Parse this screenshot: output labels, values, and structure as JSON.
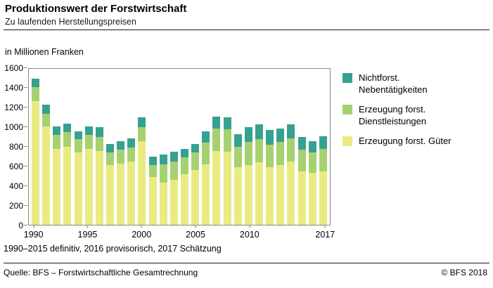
{
  "header": {
    "title": "Produktionswert der Forstwirtschaft",
    "subtitle": "Zu laufenden Herstellungspreisen"
  },
  "chart": {
    "unit_label": "in Millionen Franken"
  },
  "chart_data": {
    "type": "bar",
    "stacked": true,
    "title": "Produktionswert der Forstwirtschaft",
    "subtitle": "Zu laufenden Herstellungspreisen",
    "ylabel": "in Millionen Franken",
    "xlabel": "",
    "ylim": [
      0,
      1600
    ],
    "ytick_step": 200,
    "grid": false,
    "legend_position": "right",
    "categories": [
      1990,
      1991,
      1992,
      1993,
      1994,
      1995,
      1996,
      1997,
      1998,
      1999,
      2000,
      2001,
      2002,
      2003,
      2004,
      2005,
      2006,
      2007,
      2008,
      2009,
      2010,
      2011,
      2012,
      2013,
      2014,
      2015,
      2016,
      2017
    ],
    "xticks": [
      1990,
      1995,
      2000,
      2005,
      2010,
      2017
    ],
    "series": [
      {
        "name": "Erzeugung forst. Güter",
        "color": "#e9eb82",
        "values": [
          1270,
          1010,
          780,
          800,
          740,
          780,
          760,
          610,
          630,
          650,
          860,
          490,
          430,
          460,
          520,
          560,
          620,
          760,
          750,
          590,
          610,
          640,
          590,
          610,
          650,
          550,
          530,
          550
        ]
      },
      {
        "name": "Erzeugung forst. Dienstleistungen",
        "color": "#a6d171",
        "values": [
          140,
          130,
          140,
          150,
          140,
          140,
          140,
          130,
          140,
          140,
          140,
          120,
          190,
          190,
          170,
          180,
          220,
          230,
          230,
          210,
          240,
          240,
          230,
          240,
          240,
          220,
          210,
          230
        ]
      },
      {
        "name": "Nichtforst. Nebentätigkeiten",
        "color": "#36a191",
        "values": [
          90,
          90,
          90,
          90,
          80,
          90,
          100,
          90,
          90,
          100,
          100,
          90,
          100,
          100,
          90,
          90,
          120,
          120,
          120,
          130,
          150,
          150,
          150,
          140,
          140,
          130,
          120,
          130
        ]
      }
    ]
  },
  "legend": {
    "items": [
      {
        "label": "Nichtforst. Nebentätigkeiten",
        "color": "#36a191"
      },
      {
        "label": "Erzeugung forst. Dienstleistungen",
        "color": "#a6d171"
      },
      {
        "label": "Erzeugung forst. Güter",
        "color": "#e9eb82"
      }
    ]
  },
  "footnote": "1990–2015 definitiv, 2016 provisorisch, 2017 Schätzung",
  "footer": {
    "source": "Quelle: BFS – Forstwirtschaftliche Gesamtrechnung",
    "copyright": "© BFS  2018"
  }
}
